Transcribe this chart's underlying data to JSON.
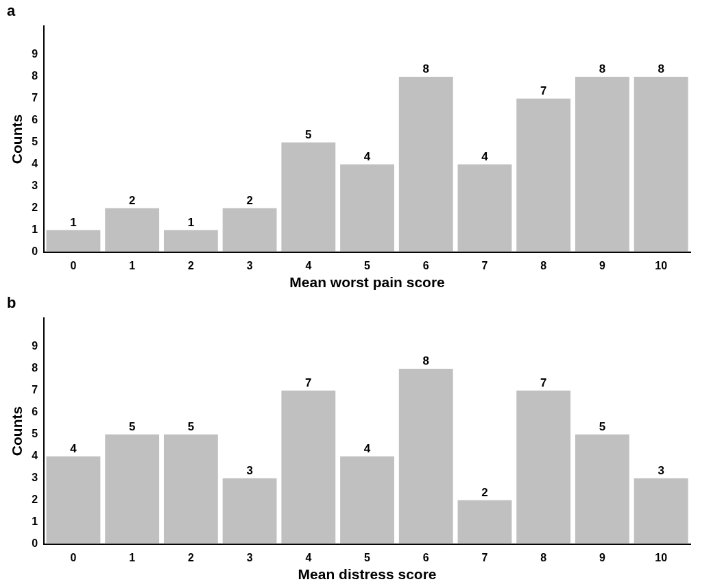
{
  "chart_data": [
    {
      "type": "bar",
      "title": "a",
      "xlabel": "Mean worst pain score",
      "ylabel": "Counts",
      "categories": [
        "0",
        "1",
        "2",
        "3",
        "4",
        "5",
        "6",
        "7",
        "8",
        "9",
        "10"
      ],
      "values": [
        1,
        2,
        1,
        2,
        5,
        4,
        8,
        4,
        7,
        8,
        8
      ],
      "color": "#c0c0c0",
      "ylim": [
        0,
        10.3
      ],
      "yticks": [
        0,
        1,
        2,
        3,
        4,
        5,
        6,
        7,
        8,
        9
      ],
      "data_labels": true,
      "grid": false,
      "legend": false
    },
    {
      "type": "bar",
      "title": "b",
      "xlabel": "Mean distress score",
      "ylabel": "Counts",
      "categories": [
        "0",
        "1",
        "2",
        "3",
        "4",
        "5",
        "6",
        "7",
        "8",
        "9",
        "10"
      ],
      "values": [
        4,
        5,
        5,
        3,
        7,
        4,
        8,
        2,
        7,
        5,
        3
      ],
      "color": "#c0c0c0",
      "ylim": [
        0,
        10.3
      ],
      "yticks": [
        0,
        1,
        2,
        3,
        4,
        5,
        6,
        7,
        8,
        9
      ],
      "data_labels": true,
      "grid": false,
      "legend": false
    }
  ]
}
